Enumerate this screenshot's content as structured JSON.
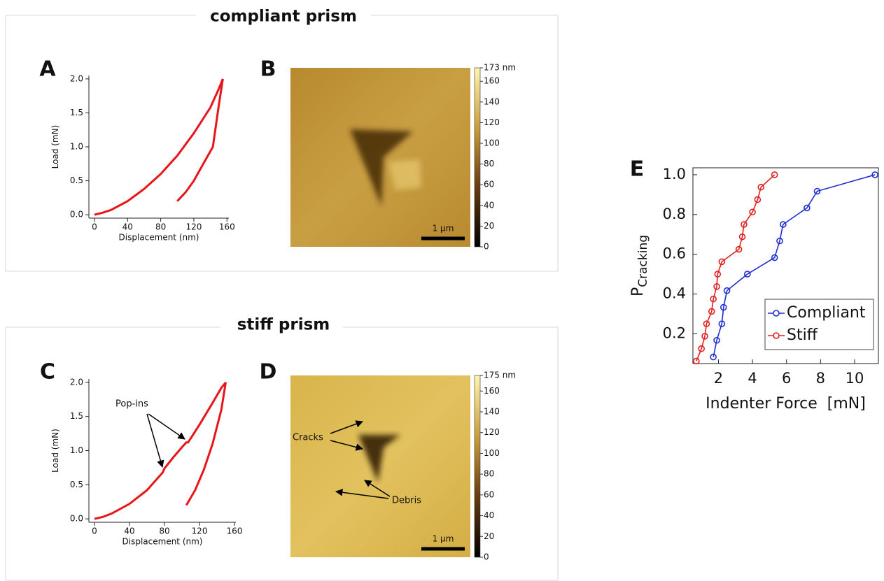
{
  "sections": [
    {
      "title": "compliant prism"
    },
    {
      "title": "stiff prism"
    }
  ],
  "chart_data": [
    {
      "type": "line",
      "panel": "A",
      "xlabel": "Displacement (nm)",
      "ylabel": "Load (mN)",
      "xlim": [
        -6.7,
        162.3
      ],
      "ylim": [
        -0.05,
        2.05
      ],
      "xticks": [
        0,
        40,
        80,
        120,
        160
      ],
      "yticks": [
        {
          "value": 0,
          "label": "0.0"
        },
        0.5,
        {
          "value": 1,
          "label": "1.0"
        },
        1.5,
        {
          "value": 2,
          "label": "2.0"
        }
      ],
      "series": [
        {
          "color": "#e8161b",
          "x": [
            0,
            10,
            20,
            40,
            60,
            80,
            100,
            120,
            140,
            150,
            155
          ],
          "values": [
            0,
            0.03,
            0.07,
            0.2,
            0.38,
            0.6,
            0.87,
            1.2,
            1.58,
            1.85,
            2.0
          ]
        },
        {
          "color": "#e8161b",
          "x": [
            155,
            150,
            143,
            130,
            120,
            110,
            100
          ],
          "values": [
            2.0,
            1.6,
            1.0,
            0.72,
            0.5,
            0.33,
            0.2
          ]
        }
      ]
    },
    {
      "type": "image",
      "panel": "B",
      "colorbar": {
        "lim": [
          0,
          173
        ],
        "ticks": [
          0,
          20,
          40,
          60,
          80,
          100,
          120,
          140,
          160,
          {
            "value": 173,
            "label": "173 nm"
          }
        ]
      },
      "scalebar": "1 µm"
    },
    {
      "type": "line",
      "panel": "C",
      "xlabel": "Displacement (nm)",
      "ylabel": "Load (mN)",
      "xlim": [
        -6.4,
        161.6
      ],
      "ylim": [
        -0.05,
        2.05
      ],
      "xticks": [
        0,
        40,
        80,
        120,
        160
      ],
      "yticks": [
        {
          "value": 0,
          "label": "0.0"
        },
        0.5,
        {
          "value": 1,
          "label": "1.0"
        },
        1.5,
        {
          "value": 2,
          "label": "2.0"
        }
      ],
      "annotations": [
        "Pop-ins"
      ],
      "series": [
        {
          "color": "#e8161b",
          "x": [
            0,
            10,
            20,
            40,
            60,
            78,
            80,
            90,
            100,
            105,
            107,
            120,
            135,
            145,
            150
          ],
          "values": [
            0,
            0.03,
            0.08,
            0.22,
            0.42,
            0.68,
            0.74,
            0.9,
            1.05,
            1.12,
            1.12,
            1.38,
            1.7,
            1.92,
            2.0
          ]
        },
        {
          "color": "#e8161b",
          "x": [
            150,
            145,
            135,
            125,
            115,
            105
          ],
          "values": [
            2.0,
            1.6,
            1.1,
            0.72,
            0.42,
            0.2
          ]
        }
      ]
    },
    {
      "type": "image",
      "panel": "D",
      "colorbar": {
        "lim": [
          0,
          175
        ],
        "ticks": [
          0,
          20,
          40,
          60,
          80,
          100,
          120,
          140,
          160,
          {
            "value": 175,
            "label": "175 nm"
          }
        ]
      },
      "scalebar": "1 µm",
      "annotations": [
        "Cracks",
        "Debris"
      ]
    },
    {
      "type": "line",
      "panel": "E",
      "xlabel": "Indenter Force  [mN]",
      "ylabel": "P",
      "ylabel_subscript": "Cracking",
      "xlim": [
        0.5,
        11.4
      ],
      "ylim": [
        0.05,
        1.035
      ],
      "xticks": [
        2,
        4,
        6,
        8,
        10
      ],
      "yticks": [
        0.2,
        0.4,
        0.6,
        0.8,
        {
          "value": 1,
          "label": "1.0"
        }
      ],
      "legend": "lower right",
      "marker": "circle",
      "frame": true,
      "series": [
        {
          "name": "Compliant",
          "color": "#1f2fd0",
          "x": [
            1.7,
            1.9,
            2.2,
            2.3,
            2.5,
            3.7,
            5.3,
            5.6,
            5.8,
            7.2,
            7.8,
            11.2
          ],
          "values": [
            0.083,
            0.167,
            0.25,
            0.333,
            0.417,
            0.5,
            0.583,
            0.667,
            0.75,
            0.833,
            0.917,
            1.0
          ]
        },
        {
          "name": "Stiff",
          "color": "#e02020",
          "x": [
            0.7,
            1.0,
            1.2,
            1.3,
            1.6,
            1.7,
            1.9,
            1.95,
            2.2,
            3.2,
            3.4,
            3.5,
            4.0,
            4.3,
            4.5,
            5.3
          ],
          "values": [
            0.0625,
            0.125,
            0.1875,
            0.25,
            0.3125,
            0.375,
            0.4375,
            0.5,
            0.5625,
            0.625,
            0.6875,
            0.75,
            0.8125,
            0.875,
            0.9375,
            1.0
          ]
        }
      ]
    }
  ]
}
